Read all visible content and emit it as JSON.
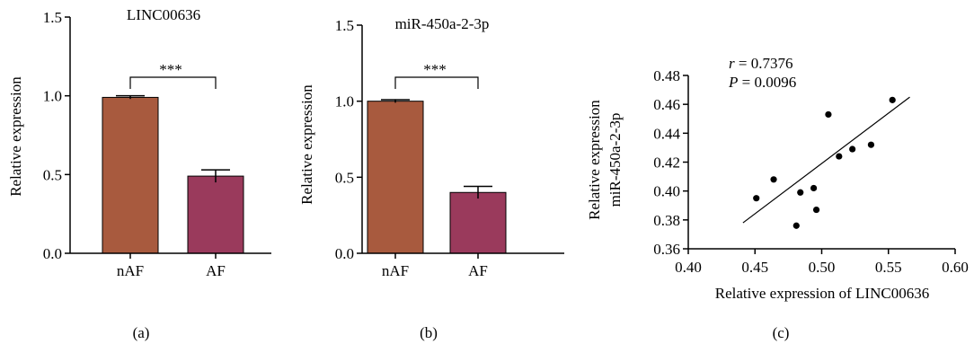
{
  "colors": {
    "nAF": "#a85a3e",
    "AF": "#9a3a5c",
    "axis": "#000000",
    "marker": "#000000"
  },
  "charts": [
    {
      "caption": "(a)",
      "chart_data": {
        "type": "bar",
        "title": "LINC00636",
        "categories": [
          "nAF",
          "AF"
        ],
        "values": [
          0.99,
          0.49
        ],
        "errors": [
          0.01,
          0.04
        ],
        "ylabel": "Relative expression",
        "xlabel": "",
        "ylim": [
          0,
          1.5
        ],
        "yticks": [
          "0.0",
          "0.5",
          "1.0",
          "1.5"
        ],
        "significance": "***"
      }
    },
    {
      "caption": "(b)",
      "chart_data": {
        "type": "bar",
        "title": "miR-450a-2-3p",
        "categories": [
          "nAF",
          "AF"
        ],
        "values": [
          1.0,
          0.4
        ],
        "errors": [
          0.01,
          0.04
        ],
        "ylabel": "Relative expression",
        "xlabel": "",
        "ylim": [
          0,
          1.5
        ],
        "yticks": [
          "0.0",
          "0.5",
          "1.0",
          "1.5"
        ],
        "significance": "***"
      }
    },
    {
      "caption": "(c)",
      "chart_data": {
        "type": "scatter",
        "title": "",
        "xlabel": "Relative expression of LINC00636",
        "ylabel_line1": "Relative expression",
        "ylabel_line2": "miR-450a-2-3p",
        "xlim": [
          0.4,
          0.6
        ],
        "ylim": [
          0.36,
          0.48
        ],
        "xticks": [
          "0.40",
          "0.45",
          "0.50",
          "0.55",
          "0.60"
        ],
        "yticks": [
          "0.36",
          "0.38",
          "0.40",
          "0.42",
          "0.44",
          "0.46",
          "0.48"
        ],
        "r_label": "r",
        "r_value": " = 0.7376",
        "p_label": "P",
        "p_value": " = 0.0096",
        "points": [
          {
            "x": 0.451,
            "y": 0.395
          },
          {
            "x": 0.464,
            "y": 0.408
          },
          {
            "x": 0.481,
            "y": 0.376
          },
          {
            "x": 0.484,
            "y": 0.399
          },
          {
            "x": 0.494,
            "y": 0.402
          },
          {
            "x": 0.496,
            "y": 0.387
          },
          {
            "x": 0.505,
            "y": 0.453
          },
          {
            "x": 0.513,
            "y": 0.424
          },
          {
            "x": 0.523,
            "y": 0.429
          },
          {
            "x": 0.537,
            "y": 0.432
          },
          {
            "x": 0.553,
            "y": 0.463
          }
        ],
        "fit_line": [
          {
            "x": 0.441,
            "y": 0.378
          },
          {
            "x": 0.566,
            "y": 0.465
          }
        ]
      }
    }
  ]
}
